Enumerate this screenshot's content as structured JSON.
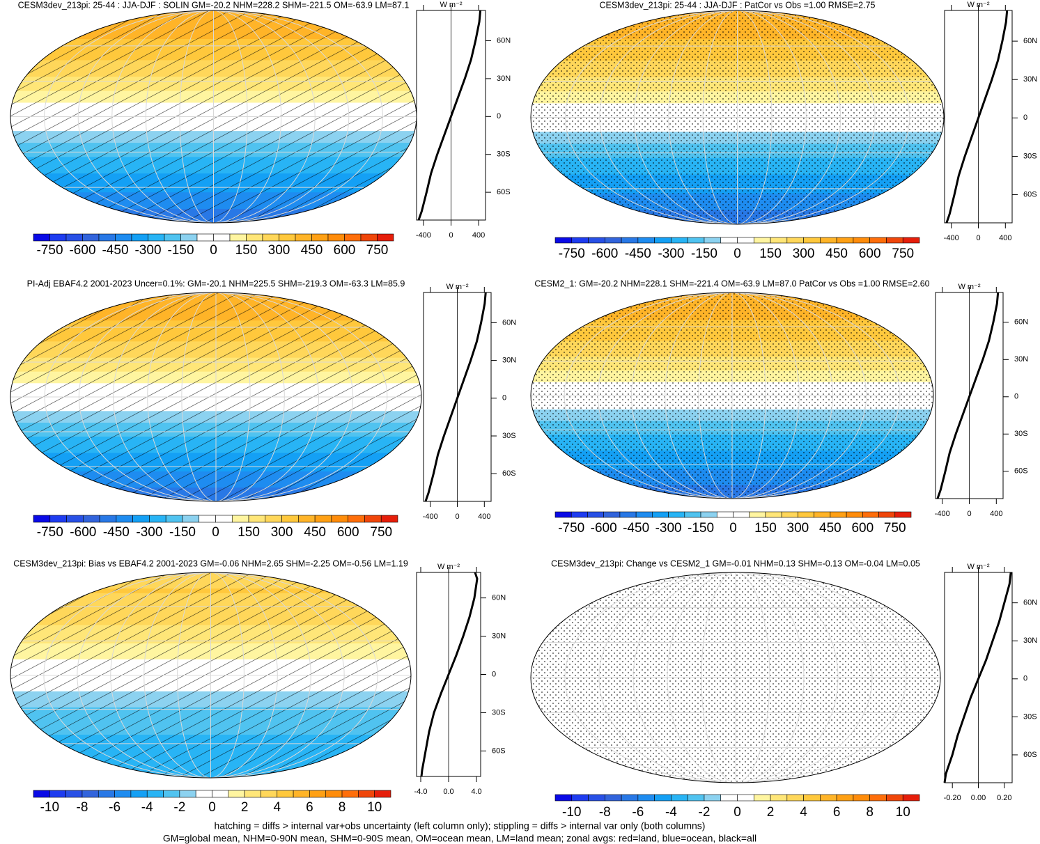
{
  "chart_data": [
    {
      "type": "map",
      "title": "CESM3dev_213pi: 25-44 : JJA-DJF : SOLIN GM=-20.2 NHM=228.2 SHM=-221.5 OM=-63.9 LM=87.1",
      "overlay": "hatch",
      "colorbar": {
        "clim": [
          -825,
          825
        ],
        "ticks": [
          -750,
          -600,
          -450,
          -300,
          -150,
          0,
          150,
          300,
          450,
          600,
          750
        ],
        "colors": [
          "#0a0ae6",
          "#1e3cf0",
          "#2850e6",
          "#3264dc",
          "#2878e6",
          "#1e8cf0",
          "#14a0f5",
          "#28b4f5",
          "#50c3f0",
          "#8cd2f0",
          "#ffffff",
          "#ffffff",
          "#fff5a0",
          "#ffe678",
          "#ffd75a",
          "#ffc83c",
          "#ffb428",
          "#ffa014",
          "#ff8c0a",
          "#ff6e0a",
          "#f0460a",
          "#e61e0a"
        ]
      },
      "zonal": {
        "type": "line",
        "units": "W m⁻²",
        "xlim": [
          -500,
          500
        ],
        "xticks": [
          -400,
          0,
          400
        ],
        "ylim": [
          -82,
          84
        ],
        "yticks": [
          {
            "value": 60,
            "label": "60N"
          },
          {
            "value": 30,
            "label": "30N"
          },
          0,
          {
            "value": -30,
            "label": "30S"
          },
          {
            "value": -60,
            "label": "60S"
          }
        ],
        "y": [
          -82,
          -75,
          -60,
          -45,
          -30,
          -15,
          0,
          15,
          30,
          45,
          60,
          75,
          84
        ],
        "series": [
          {
            "color": "#000000",
            "values": [
              -470,
              -425,
              -355,
              -290,
              -200,
              -100,
              0,
              100,
              200,
              290,
              355,
              410,
              425
            ]
          }
        ]
      }
    },
    {
      "type": "map",
      "title": "CESM3dev_213pi: 25-44 : JJA-DJF : PatCor vs Obs =1.00 RMSE=2.75",
      "overlay": "stipple",
      "colorbar": {
        "clim": [
          -825,
          825
        ],
        "ticks": [
          -750,
          -600,
          -450,
          -300,
          -150,
          0,
          150,
          300,
          450,
          600,
          750
        ],
        "colors": [
          "#0a0ae6",
          "#1e3cf0",
          "#2850e6",
          "#3264dc",
          "#2878e6",
          "#1e8cf0",
          "#14a0f5",
          "#28b4f5",
          "#50c3f0",
          "#8cd2f0",
          "#ffffff",
          "#ffffff",
          "#fff5a0",
          "#ffe678",
          "#ffd75a",
          "#ffc83c",
          "#ffb428",
          "#ffa014",
          "#ff8c0a",
          "#ff6e0a",
          "#f0460a",
          "#e61e0a"
        ]
      },
      "zonal": {
        "type": "line",
        "units": "W m⁻²",
        "xlim": [
          -500,
          500
        ],
        "xticks": [
          -400,
          0,
          400
        ],
        "ylim": [
          -82,
          84
        ],
        "yticks": [
          {
            "value": 60,
            "label": "60N"
          },
          {
            "value": 30,
            "label": "30N"
          },
          0,
          {
            "value": -30,
            "label": "30S"
          },
          {
            "value": -60,
            "label": "60S"
          }
        ],
        "y": [
          -82,
          -75,
          -60,
          -45,
          -30,
          -15,
          0,
          15,
          30,
          45,
          60,
          75,
          84
        ],
        "series": [
          {
            "color": "#000000",
            "values": [
              -470,
              -425,
              -355,
              -290,
              -200,
              -100,
              0,
              100,
              200,
              290,
              355,
              410,
              425
            ]
          }
        ]
      }
    },
    {
      "type": "map",
      "title": "PI-Adj EBAF4.2 2001-2023 Uncer=0.1%: GM=-20.1 NHM=225.5 SHM=-219.3 OM=-63.3 LM=85.9",
      "overlay": "hatch",
      "colorbar": {
        "clim": [
          -825,
          825
        ],
        "ticks": [
          -750,
          -600,
          -450,
          -300,
          -150,
          0,
          150,
          300,
          450,
          600,
          750
        ],
        "colors": [
          "#0a0ae6",
          "#1e3cf0",
          "#2850e6",
          "#3264dc",
          "#2878e6",
          "#1e8cf0",
          "#14a0f5",
          "#28b4f5",
          "#50c3f0",
          "#8cd2f0",
          "#ffffff",
          "#ffffff",
          "#fff5a0",
          "#ffe678",
          "#ffd75a",
          "#ffc83c",
          "#ffb428",
          "#ffa014",
          "#ff8c0a",
          "#ff6e0a",
          "#f0460a",
          "#e61e0a"
        ]
      },
      "zonal": {
        "type": "line",
        "units": "W m⁻²",
        "xlim": [
          -500,
          500
        ],
        "xticks": [
          -400,
          0,
          400
        ],
        "ylim": [
          -82,
          84
        ],
        "yticks": [
          {
            "value": 60,
            "label": "60N"
          },
          {
            "value": 30,
            "label": "30N"
          },
          0,
          {
            "value": -30,
            "label": "30S"
          },
          {
            "value": -60,
            "label": "60S"
          }
        ],
        "y": [
          -82,
          -75,
          -60,
          -45,
          -30,
          -15,
          0,
          15,
          30,
          45,
          60,
          75,
          84
        ],
        "series": [
          {
            "color": "#000000",
            "values": [
              -470,
              -425,
              -352,
              -288,
              -198,
              -99,
              0,
              99,
              198,
              288,
              352,
              405,
              420
            ]
          }
        ]
      }
    },
    {
      "type": "map",
      "title": "CESM2_1: GM=-20.2 NHM=228.1 SHM=-221.4 OM=-63.9 LM=87.0 PatCor vs Obs =1.00 RMSE=2.60",
      "overlay": "stipple",
      "colorbar": {
        "clim": [
          -825,
          825
        ],
        "ticks": [
          -750,
          -600,
          -450,
          -300,
          -150,
          0,
          150,
          300,
          450,
          600,
          750
        ],
        "colors": [
          "#0a0ae6",
          "#1e3cf0",
          "#2850e6",
          "#3264dc",
          "#2878e6",
          "#1e8cf0",
          "#14a0f5",
          "#28b4f5",
          "#50c3f0",
          "#8cd2f0",
          "#ffffff",
          "#ffffff",
          "#fff5a0",
          "#ffe678",
          "#ffd75a",
          "#ffc83c",
          "#ffb428",
          "#ffa014",
          "#ff8c0a",
          "#ff6e0a",
          "#f0460a",
          "#e61e0a"
        ]
      },
      "zonal": {
        "type": "line",
        "units": "W m⁻²",
        "xlim": [
          -500,
          500
        ],
        "xticks": [
          -400,
          0,
          400
        ],
        "ylim": [
          -82,
          84
        ],
        "yticks": [
          {
            "value": 60,
            "label": "60N"
          },
          {
            "value": 30,
            "label": "30N"
          },
          0,
          {
            "value": -30,
            "label": "30S"
          },
          {
            "value": -60,
            "label": "60S"
          }
        ],
        "y": [
          -82,
          -75,
          -60,
          -45,
          -30,
          -15,
          0,
          15,
          30,
          45,
          60,
          75,
          84
        ],
        "series": [
          {
            "color": "#000000",
            "values": [
              -470,
              -425,
              -355,
              -290,
              -200,
              -100,
              0,
              100,
              200,
              290,
              355,
              410,
              425
            ]
          }
        ]
      }
    },
    {
      "type": "map",
      "title": "CESM3dev_213pi: Bias vs EBAF4.2 2001-2023 GM=-0.06 NHM=2.65 SHM=-2.25 OM=-0.56 LM=1.19",
      "overlay": "hatch",
      "colorbar": {
        "clim": [
          -11,
          11
        ],
        "ticks": [
          -10,
          -8,
          -6,
          -4,
          -2,
          0,
          2,
          4,
          6,
          8,
          10
        ],
        "colors": [
          "#0a0ae6",
          "#1e3cf0",
          "#2850e6",
          "#3264dc",
          "#2878e6",
          "#1e8cf0",
          "#14a0f5",
          "#28b4f5",
          "#50c3f0",
          "#8cd2f0",
          "#ffffff",
          "#ffffff",
          "#fff5a0",
          "#ffe678",
          "#ffd75a",
          "#ffc83c",
          "#ffb428",
          "#ffa014",
          "#ff8c0a",
          "#ff6e0a",
          "#f0460a",
          "#e61e0a"
        ]
      },
      "zonal": {
        "type": "line",
        "units": "W m⁻²",
        "xlim": [
          -4.6,
          4.6
        ],
        "xticks": [
          {
            "value": -4,
            "label": "-4.0"
          },
          {
            "value": 0,
            "label": "0.0"
          },
          {
            "value": 4,
            "label": "4.0"
          }
        ],
        "ylim": [
          -80,
          80
        ],
        "yticks": [
          {
            "value": 60,
            "label": "60N"
          },
          {
            "value": 30,
            "label": "30N"
          },
          0,
          {
            "value": -30,
            "label": "30S"
          },
          {
            "value": -60,
            "label": "60S"
          }
        ],
        "y": [
          -80,
          -75,
          -60,
          -45,
          -30,
          -15,
          0,
          15,
          30,
          45,
          60,
          75,
          80
        ],
        "series": [
          {
            "color": "#000000",
            "values": [
              -3.9,
              -3.8,
              -3.3,
              -2.8,
              -2.1,
              -1.1,
              0,
              1.1,
              2.1,
              3.0,
              3.7,
              4.1,
              3.8
            ]
          }
        ]
      }
    },
    {
      "type": "map",
      "title": "CESM3dev_213pi: Change vs CESM2_1 GM=-0.01 NHM=0.13 SHM=-0.13 OM=-0.04 LM=0.05",
      "overlay": "stipple",
      "colorbar": {
        "clim": [
          -11,
          11
        ],
        "ticks": [
          -10,
          -8,
          -6,
          -4,
          -2,
          0,
          2,
          4,
          6,
          8,
          10
        ],
        "colors": [
          "#0a0ae6",
          "#1e3cf0",
          "#2850e6",
          "#3264dc",
          "#2878e6",
          "#1e8cf0",
          "#14a0f5",
          "#28b4f5",
          "#50c3f0",
          "#8cd2f0",
          "#ffffff",
          "#ffffff",
          "#fff5a0",
          "#ffe678",
          "#ffd75a",
          "#ffc83c",
          "#ffb428",
          "#ffa014",
          "#ff8c0a",
          "#ff6e0a",
          "#f0460a",
          "#e61e0a"
        ]
      },
      "zonal": {
        "type": "line",
        "units": "W m⁻²",
        "xlim": [
          -0.26,
          0.26
        ],
        "xticks": [
          {
            "value": -0.2,
            "label": "-0.20"
          },
          {
            "value": 0,
            "label": "0.00"
          },
          {
            "value": 0.2,
            "label": "0.20"
          }
        ],
        "ylim": [
          -82,
          84
        ],
        "yticks": [
          {
            "value": 60,
            "label": "60N"
          },
          {
            "value": 30,
            "label": "30N"
          },
          0,
          {
            "value": -30,
            "label": "30S"
          },
          {
            "value": -60,
            "label": "60S"
          }
        ],
        "y": [
          -82,
          -75,
          -60,
          -45,
          -30,
          -15,
          0,
          15,
          30,
          45,
          60,
          75,
          84
        ],
        "series": [
          {
            "color": "#000000",
            "values": [
              -0.26,
              -0.25,
              -0.2,
              -0.16,
              -0.11,
              -0.06,
              0,
              0.06,
              0.11,
              0.16,
              0.2,
              0.24,
              0.25
            ]
          }
        ]
      }
    }
  ],
  "notes": [
    "hatching = diffs > internal var+obs uncertainty (left column only); stippling = diffs > internal var only (both columns)",
    "GM=global mean, NHM=0-90N mean, SHM=0-90S mean, OM=ocean mean, LM=land mean; zonal avgs: red=land, blue=ocean, black=all"
  ]
}
